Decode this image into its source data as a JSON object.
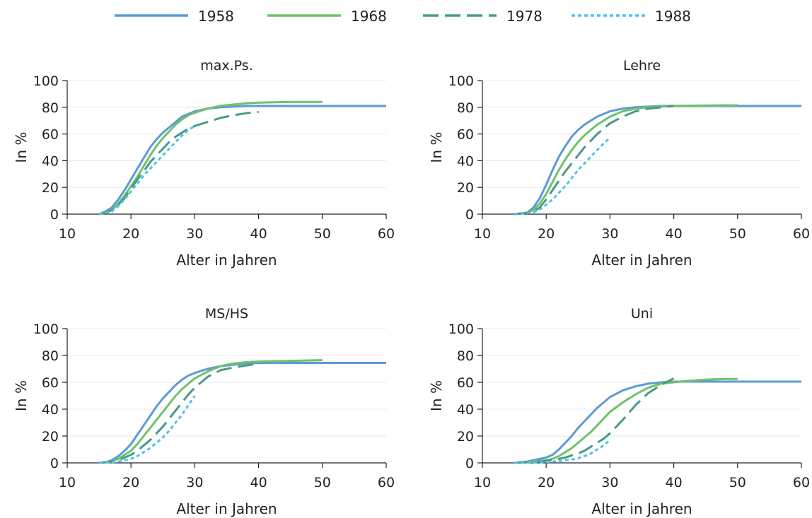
{
  "colors": {
    "s1958": "#5b9bd5",
    "s1968": "#70c16b",
    "s1978": "#4a9a86",
    "s1988": "#4fc3e8",
    "grid": "#e8e8e8",
    "axis": "#222222"
  },
  "legend": [
    {
      "name": "1958",
      "color": "#5b9bd5",
      "dash": "solid"
    },
    {
      "name": "1968",
      "color": "#70c16b",
      "dash": "solid"
    },
    {
      "name": "1978",
      "color": "#4a9a86",
      "dash": "long-dash"
    },
    {
      "name": "1988",
      "color": "#4fc3e8",
      "dash": "dotted"
    }
  ],
  "chart_data": [
    {
      "type": "line",
      "title": "max.Ps.",
      "xlabel": "Alter in Jahren",
      "ylabel": "In %",
      "xlim": [
        10,
        60
      ],
      "ylim": [
        0,
        100
      ],
      "xticks": [
        10,
        20,
        30,
        40,
        50,
        60
      ],
      "yticks": [
        0,
        20,
        40,
        60,
        80,
        100
      ],
      "grid": true,
      "series": [
        {
          "name": "1958",
          "x": [
            15,
            16,
            17,
            18,
            19,
            20,
            21,
            22,
            23,
            24,
            25,
            26,
            27,
            28,
            29,
            30,
            32,
            34,
            36,
            38,
            40,
            45,
            50,
            55,
            60
          ],
          "y": [
            0,
            2,
            5,
            11,
            18,
            26,
            34,
            42,
            50,
            56,
            61,
            65,
            69,
            73,
            75,
            77,
            79,
            80,
            80.5,
            81,
            81,
            81,
            81,
            81,
            81
          ]
        },
        {
          "name": "1968",
          "x": [
            15,
            16,
            17,
            18,
            19,
            20,
            21,
            22,
            23,
            24,
            25,
            26,
            27,
            28,
            29,
            30,
            32,
            34,
            36,
            38,
            40,
            45,
            50
          ],
          "y": [
            0,
            1,
            3,
            8,
            14,
            21,
            28,
            36,
            44,
            51,
            57,
            62,
            67,
            71,
            74,
            76,
            79,
            81,
            82,
            83,
            83.5,
            84,
            84
          ]
        },
        {
          "name": "1978",
          "x": [
            15,
            16,
            17,
            18,
            19,
            20,
            21,
            22,
            23,
            24,
            25,
            26,
            27,
            28,
            29,
            30,
            32,
            34,
            36,
            38,
            40
          ],
          "y": [
            0,
            1,
            3,
            7,
            12,
            19,
            26,
            32,
            39,
            44,
            49,
            54,
            58,
            61,
            64,
            66,
            69,
            72,
            74,
            75.5,
            76.5
          ]
        },
        {
          "name": "1988",
          "x": [
            15,
            16,
            17,
            18,
            19,
            20,
            21,
            22,
            23,
            24,
            25,
            26,
            27,
            28,
            29,
            30
          ],
          "y": [
            0,
            1,
            2,
            6,
            11,
            17,
            23,
            29,
            34,
            39,
            44,
            49,
            54,
            59,
            63,
            66
          ]
        }
      ]
    },
    {
      "type": "line",
      "title": "Lehre",
      "xlabel": "Alter in Jahren",
      "ylabel": "In %",
      "xlim": [
        10,
        60
      ],
      "ylim": [
        0,
        100
      ],
      "xticks": [
        10,
        20,
        30,
        40,
        50,
        60
      ],
      "yticks": [
        0,
        20,
        40,
        60,
        80,
        100
      ],
      "grid": true,
      "series": [
        {
          "name": "1958",
          "x": [
            15,
            16,
            17,
            18,
            19,
            20,
            21,
            22,
            23,
            24,
            25,
            26,
            27,
            28,
            29,
            30,
            32,
            34,
            36,
            38,
            40,
            45,
            50,
            55,
            60
          ],
          "y": [
            0,
            0.5,
            1,
            5,
            12,
            22,
            33,
            43,
            51,
            58,
            63,
            67,
            70,
            73,
            75,
            77,
            79,
            80,
            80.5,
            81,
            81,
            81,
            81,
            81,
            81
          ]
        },
        {
          "name": "1968",
          "x": [
            15,
            16,
            17,
            18,
            19,
            20,
            21,
            22,
            23,
            24,
            25,
            26,
            27,
            28,
            29,
            30,
            32,
            34,
            36,
            38,
            40,
            45,
            50
          ],
          "y": [
            0,
            0.5,
            1,
            3,
            8,
            15,
            24,
            33,
            41,
            48,
            54,
            59,
            63,
            67,
            70,
            73,
            77,
            79,
            80,
            80.5,
            81,
            81.3,
            81.5
          ]
        },
        {
          "name": "1978",
          "x": [
            15,
            16,
            17,
            18,
            19,
            20,
            21,
            22,
            23,
            24,
            25,
            26,
            27,
            28,
            29,
            30,
            32,
            34,
            36,
            38,
            40
          ],
          "y": [
            0,
            0.5,
            1,
            2,
            5,
            11,
            18,
            25,
            32,
            38,
            44,
            50,
            55,
            60,
            64,
            68,
            73,
            77,
            79,
            80,
            81
          ]
        },
        {
          "name": "1988",
          "x": [
            15,
            16,
            17,
            18,
            19,
            20,
            21,
            22,
            23,
            24,
            25,
            26,
            27,
            28,
            29,
            30
          ],
          "y": [
            0,
            0.3,
            0.8,
            1.5,
            3.5,
            7,
            11,
            16,
            21,
            27,
            33,
            38,
            43,
            48,
            53,
            57
          ]
        }
      ]
    },
    {
      "type": "line",
      "title": "MS/HS",
      "xlabel": "Alter in Jahren",
      "ylabel": "In %",
      "xlim": [
        10,
        60
      ],
      "ylim": [
        0,
        100
      ],
      "xticks": [
        10,
        20,
        30,
        40,
        50,
        60
      ],
      "yticks": [
        0,
        20,
        40,
        60,
        80,
        100
      ],
      "grid": true,
      "series": [
        {
          "name": "1958",
          "x": [
            15,
            16,
            17,
            18,
            19,
            20,
            21,
            22,
            23,
            24,
            25,
            26,
            27,
            28,
            29,
            30,
            32,
            34,
            36,
            38,
            40,
            45,
            50,
            55,
            60
          ],
          "y": [
            0,
            0.5,
            2,
            5,
            9,
            14,
            21,
            28,
            35,
            42,
            48,
            53,
            58,
            62,
            65,
            67,
            70,
            72,
            73,
            74,
            74.5,
            74.5,
            74.5,
            74.5,
            74.5
          ]
        },
        {
          "name": "1968",
          "x": [
            15,
            16,
            17,
            18,
            19,
            20,
            21,
            22,
            23,
            24,
            25,
            26,
            27,
            28,
            29,
            30,
            32,
            34,
            36,
            38,
            40,
            45,
            50
          ],
          "y": [
            0,
            0.5,
            1,
            3,
            6,
            9,
            14,
            20,
            26,
            32,
            38,
            44,
            50,
            55,
            59,
            63,
            68,
            72,
            74,
            75,
            75.5,
            76,
            76.5
          ]
        },
        {
          "name": "1978",
          "x": [
            15,
            16,
            17,
            18,
            19,
            20,
            21,
            22,
            23,
            24,
            25,
            26,
            27,
            28,
            29,
            30,
            32,
            34,
            36,
            38,
            40
          ],
          "y": [
            0,
            0.3,
            0.8,
            2,
            4,
            6,
            9,
            13,
            17,
            22,
            27,
            33,
            39,
            45,
            51,
            56,
            64,
            69,
            71,
            72.5,
            74
          ]
        },
        {
          "name": "1988",
          "x": [
            15,
            16,
            17,
            18,
            19,
            20,
            21,
            22,
            23,
            24,
            25,
            26,
            27,
            28,
            29,
            30
          ],
          "y": [
            0,
            0.3,
            0.5,
            1,
            2,
            3,
            5,
            8,
            11,
            15,
            19,
            24,
            30,
            36,
            43,
            50
          ]
        }
      ]
    },
    {
      "type": "line",
      "title": "Uni",
      "xlabel": "Alter in Jahren",
      "ylabel": "In %",
      "xlim": [
        10,
        60
      ],
      "ylim": [
        0,
        100
      ],
      "xticks": [
        10,
        20,
        30,
        40,
        50,
        60
      ],
      "yticks": [
        0,
        20,
        40,
        60,
        80,
        100
      ],
      "grid": true,
      "series": [
        {
          "name": "1958",
          "x": [
            15,
            16,
            17,
            18,
            19,
            20,
            21,
            22,
            23,
            24,
            25,
            26,
            27,
            28,
            29,
            30,
            32,
            34,
            36,
            38,
            40,
            45,
            50,
            55,
            60
          ],
          "y": [
            0,
            0.5,
            1,
            2,
            3,
            4,
            6,
            10,
            15,
            20,
            26,
            31,
            36,
            41,
            45,
            49,
            54,
            57,
            59,
            60,
            60.5,
            60.5,
            60.5,
            60.5,
            60.5
          ]
        },
        {
          "name": "1968",
          "x": [
            15,
            16,
            17,
            18,
            19,
            20,
            21,
            22,
            23,
            24,
            25,
            26,
            27,
            28,
            29,
            30,
            32,
            34,
            36,
            38,
            40,
            42,
            45,
            48,
            50
          ],
          "y": [
            0,
            0.3,
            0.5,
            1,
            1.5,
            2,
            3,
            5,
            8,
            11,
            15,
            19,
            23,
            28,
            33,
            38,
            45,
            51,
            56,
            59,
            60,
            61,
            62,
            62.5,
            62.5
          ]
        },
        {
          "name": "1978",
          "x": [
            15,
            16,
            17,
            18,
            19,
            20,
            21,
            22,
            23,
            24,
            25,
            26,
            27,
            28,
            29,
            30,
            32,
            34,
            36,
            38,
            40
          ],
          "y": [
            0,
            0.2,
            0.4,
            0.7,
            1,
            1.5,
            2,
            3,
            4,
            5.5,
            7,
            9,
            12,
            15,
            18,
            22,
            32,
            43,
            52,
            58,
            63
          ]
        },
        {
          "name": "1988",
          "x": [
            15,
            16,
            17,
            18,
            19,
            20,
            21,
            22,
            23,
            24,
            25,
            26,
            27,
            28,
            29,
            30
          ],
          "y": [
            0,
            0.1,
            0.2,
            0.3,
            0.5,
            0.7,
            1,
            1.3,
            2,
            2.5,
            3.5,
            5,
            7,
            10,
            13,
            17
          ]
        }
      ]
    }
  ]
}
